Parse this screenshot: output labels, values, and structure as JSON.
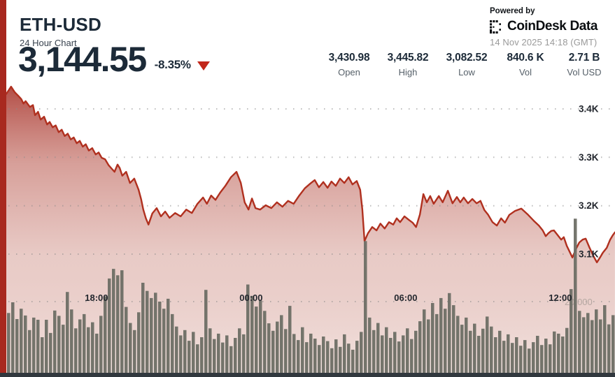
{
  "header": {
    "symbol": "ETH-USD",
    "subtitle": "24 Hour Chart",
    "price": "3,144.55",
    "change_pct": "-8.35%"
  },
  "branding": {
    "powered_by": "Powered by",
    "brand_name": "CoinDesk",
    "brand_suffix": "Data",
    "timestamp": "14 Nov 2025 14:18 (GMT)"
  },
  "stats": {
    "items": [
      {
        "value": "3,430.98",
        "label": "Open"
      },
      {
        "value": "3,445.82",
        "label": "High"
      },
      {
        "value": "3,082.52",
        "label": "Low"
      },
      {
        "value": "840.6 K",
        "label": "Vol"
      },
      {
        "value": "2.71 B",
        "label": "Vol USD"
      }
    ]
  },
  "colors": {
    "navy_text": "#1C2A38",
    "accent_red": "#A8291F",
    "line_red": "#B0301F",
    "triangle_red": "#C2271A",
    "volume_bar": "#6E6F66",
    "grid_dot": "#8A8A8A",
    "time_label": "#23272E",
    "price_axis_label": "#23272E",
    "volume_axis_label": "#B5A7A1",
    "area_gradient_top": "rgba(162,39,30,0.85)",
    "area_gradient_mid1": "rgba(188,95,85,0.6)",
    "area_gradient_mid2": "rgba(214,160,152,0.55)",
    "area_gradient_bottom": "rgba(240,222,218,0.85)"
  },
  "chart_data": {
    "type": "area+bar",
    "title": "ETH-USD 24 hour price (USD) with volume bars",
    "x_axis": {
      "labels": [
        {
          "text": "18:00",
          "t_min": 210
        },
        {
          "text": "00:00",
          "t_min": 570
        },
        {
          "text": "06:00",
          "t_min": 930
        },
        {
          "text": "12:00",
          "t_min": 1290
        }
      ]
    },
    "price_axis": {
      "labels": [
        {
          "text": "3.4K",
          "price": 3400
        },
        {
          "text": "3.3K",
          "price": 3300
        },
        {
          "text": "3.2K",
          "price": 3200
        },
        {
          "text": "3.1K",
          "price": 3100
        }
      ],
      "range": [
        3050,
        3470
      ]
    },
    "volume_axis": {
      "gridline_label": "20,000",
      "gridline_value": 20000
    },
    "price_series": [
      [
        0,
        3431
      ],
      [
        11,
        3446
      ],
      [
        20,
        3434
      ],
      [
        28,
        3427
      ],
      [
        35,
        3420
      ],
      [
        40,
        3411
      ],
      [
        45,
        3416
      ],
      [
        55,
        3404
      ],
      [
        62,
        3408
      ],
      [
        67,
        3387
      ],
      [
        74,
        3394
      ],
      [
        80,
        3378
      ],
      [
        88,
        3384
      ],
      [
        95,
        3368
      ],
      [
        101,
        3373
      ],
      [
        108,
        3362
      ],
      [
        115,
        3366
      ],
      [
        122,
        3352
      ],
      [
        129,
        3357
      ],
      [
        136,
        3344
      ],
      [
        143,
        3349
      ],
      [
        150,
        3337
      ],
      [
        157,
        3341
      ],
      [
        164,
        3329
      ],
      [
        171,
        3334
      ],
      [
        178,
        3322
      ],
      [
        185,
        3327
      ],
      [
        192,
        3314
      ],
      [
        200,
        3319
      ],
      [
        208,
        3306
      ],
      [
        215,
        3310
      ],
      [
        222,
        3299
      ],
      [
        230,
        3296
      ],
      [
        238,
        3284
      ],
      [
        246,
        3276
      ],
      [
        252,
        3270
      ],
      [
        259,
        3285
      ],
      [
        264,
        3278
      ],
      [
        270,
        3262
      ],
      [
        279,
        3270
      ],
      [
        288,
        3247
      ],
      [
        298,
        3256
      ],
      [
        308,
        3233
      ],
      [
        314,
        3213
      ],
      [
        319,
        3192
      ],
      [
        325,
        3174
      ],
      [
        331,
        3161
      ],
      [
        340,
        3184
      ],
      [
        350,
        3195
      ],
      [
        360,
        3178
      ],
      [
        370,
        3188
      ],
      [
        380,
        3175
      ],
      [
        393,
        3185
      ],
      [
        406,
        3178
      ],
      [
        419,
        3192
      ],
      [
        432,
        3185
      ],
      [
        445,
        3204
      ],
      [
        458,
        3217
      ],
      [
        467,
        3204
      ],
      [
        477,
        3221
      ],
      [
        487,
        3212
      ],
      [
        498,
        3227
      ],
      [
        510,
        3241
      ],
      [
        523,
        3259
      ],
      [
        536,
        3270
      ],
      [
        546,
        3247
      ],
      [
        555,
        3207
      ],
      [
        564,
        3192
      ],
      [
        572,
        3215
      ],
      [
        580,
        3195
      ],
      [
        591,
        3192
      ],
      [
        604,
        3201
      ],
      [
        617,
        3195
      ],
      [
        630,
        3207
      ],
      [
        643,
        3198
      ],
      [
        656,
        3210
      ],
      [
        669,
        3204
      ],
      [
        682,
        3221
      ],
      [
        695,
        3236
      ],
      [
        708,
        3246
      ],
      [
        718,
        3253
      ],
      [
        728,
        3238
      ],
      [
        738,
        3249
      ],
      [
        748,
        3237
      ],
      [
        757,
        3250
      ],
      [
        767,
        3241
      ],
      [
        777,
        3256
      ],
      [
        787,
        3247
      ],
      [
        797,
        3259
      ],
      [
        806,
        3244
      ],
      [
        816,
        3251
      ],
      [
        824,
        3233
      ],
      [
        829,
        3192
      ],
      [
        834,
        3127
      ],
      [
        842,
        3143
      ],
      [
        852,
        3156
      ],
      [
        862,
        3149
      ],
      [
        871,
        3163
      ],
      [
        881,
        3153
      ],
      [
        891,
        3166
      ],
      [
        901,
        3161
      ],
      [
        909,
        3174
      ],
      [
        917,
        3166
      ],
      [
        927,
        3178
      ],
      [
        937,
        3171
      ],
      [
        946,
        3165
      ],
      [
        954,
        3156
      ],
      [
        963,
        3182
      ],
      [
        971,
        3224
      ],
      [
        979,
        3207
      ],
      [
        987,
        3220
      ],
      [
        995,
        3204
      ],
      [
        1007,
        3220
      ],
      [
        1016,
        3207
      ],
      [
        1028,
        3231
      ],
      [
        1039,
        3205
      ],
      [
        1049,
        3218
      ],
      [
        1057,
        3207
      ],
      [
        1065,
        3217
      ],
      [
        1075,
        3205
      ],
      [
        1085,
        3214
      ],
      [
        1095,
        3205
      ],
      [
        1104,
        3210
      ],
      [
        1113,
        3191
      ],
      [
        1122,
        3181
      ],
      [
        1132,
        3166
      ],
      [
        1142,
        3159
      ],
      [
        1152,
        3174
      ],
      [
        1161,
        3165
      ],
      [
        1171,
        3181
      ],
      [
        1184,
        3189
      ],
      [
        1199,
        3194
      ],
      [
        1215,
        3181
      ],
      [
        1228,
        3169
      ],
      [
        1240,
        3159
      ],
      [
        1249,
        3149
      ],
      [
        1256,
        3137
      ],
      [
        1262,
        3143
      ],
      [
        1269,
        3148
      ],
      [
        1275,
        3149
      ],
      [
        1284,
        3139
      ],
      [
        1292,
        3130
      ],
      [
        1298,
        3135
      ],
      [
        1305,
        3117
      ],
      [
        1311,
        3106
      ],
      [
        1318,
        3093
      ],
      [
        1326,
        3110
      ],
      [
        1334,
        3124
      ],
      [
        1342,
        3130
      ],
      [
        1349,
        3132
      ],
      [
        1358,
        3113
      ],
      [
        1367,
        3096
      ],
      [
        1375,
        3083
      ],
      [
        1383,
        3094
      ],
      [
        1389,
        3103
      ],
      [
        1398,
        3113
      ],
      [
        1406,
        3130
      ],
      [
        1412,
        3139
      ],
      [
        1417,
        3145
      ]
    ],
    "volume_series": [
      16800,
      19800,
      15100,
      18000,
      16100,
      12000,
      15500,
      14900,
      10000,
      14900,
      11200,
      17500,
      16000,
      13500,
      22700,
      17800,
      12500,
      15000,
      16500,
      12800,
      14200,
      11000,
      16000,
      21500,
      26500,
      29200,
      27400,
      28800,
      18500,
      14000,
      12000,
      17000,
      25300,
      23000,
      21000,
      22500,
      20000,
      18000,
      20800,
      16500,
      13000,
      10500,
      12000,
      9000,
      11500,
      8000,
      10000,
      23300,
      12500,
      9500,
      11000,
      8500,
      10500,
      7500,
      9800,
      12500,
      10800,
      24800,
      21600,
      18600,
      20300,
      17400,
      13900,
      11800,
      14400,
      16200,
      12300,
      18800,
      10900,
      9200,
      12800,
      8600,
      11000,
      9600,
      7800,
      10200,
      8900,
      6900,
      9400,
      7300,
      10800,
      8200,
      6500,
      9000,
      11500,
      37000,
      15500,
      12000,
      14000,
      10500,
      12800,
      9800,
      11500,
      8800,
      10500,
      12500,
      9500,
      11800,
      14500,
      17800,
      15000,
      19600,
      16500,
      21000,
      18000,
      22400,
      19000,
      16000,
      13500,
      15500,
      11800,
      13800,
      10400,
      12400,
      15800,
      13000,
      10000,
      11800,
      9000,
      10800,
      8400,
      10000,
      7600,
      9200,
      6800,
      8600,
      10400,
      7800,
      9600,
      8000,
      11600,
      11000,
      10200,
      12600,
      23500,
      43300,
      17400,
      15600,
      16800,
      14800,
      17800,
      15000,
      19000,
      13600,
      16200
    ]
  }
}
